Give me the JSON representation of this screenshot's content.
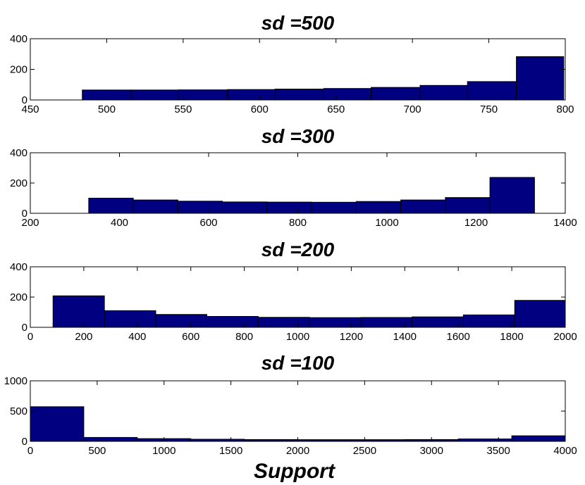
{
  "colors": {
    "bar_fill": "#000080",
    "bar_edge": "#000000",
    "axis": "#000000",
    "background": "#ffffff"
  },
  "chart_data": [
    {
      "type": "bar",
      "title": "sd =500",
      "xlabel": "",
      "ylabel": "",
      "xlim": [
        450,
        800
      ],
      "ylim": [
        0,
        400
      ],
      "xticks": [
        450,
        500,
        550,
        600,
        650,
        700,
        750,
        800
      ],
      "yticks": [
        0,
        200,
        400
      ],
      "bins": [
        {
          "x0": 484,
          "x1": 516,
          "value": 65
        },
        {
          "x0": 516,
          "x1": 547,
          "value": 65
        },
        {
          "x0": 547,
          "x1": 579,
          "value": 66
        },
        {
          "x0": 579,
          "x1": 610,
          "value": 68
        },
        {
          "x0": 610,
          "x1": 642,
          "value": 71
        },
        {
          "x0": 642,
          "x1": 673,
          "value": 75
        },
        {
          "x0": 673,
          "x1": 705,
          "value": 82
        },
        {
          "x0": 705,
          "x1": 736,
          "value": 95
        },
        {
          "x0": 736,
          "x1": 768,
          "value": 120
        },
        {
          "x0": 768,
          "x1": 799,
          "value": 283
        }
      ]
    },
    {
      "type": "bar",
      "title": "sd =300",
      "xlabel": "",
      "ylabel": "",
      "xlim": [
        200,
        1400
      ],
      "ylim": [
        0,
        400
      ],
      "xticks": [
        200,
        400,
        600,
        800,
        1000,
        1200,
        1400
      ],
      "yticks": [
        0,
        200,
        400
      ],
      "bins": [
        {
          "x0": 331,
          "x1": 431,
          "value": 100
        },
        {
          "x0": 431,
          "x1": 531,
          "value": 88
        },
        {
          "x0": 531,
          "x1": 631,
          "value": 80
        },
        {
          "x0": 631,
          "x1": 731,
          "value": 75
        },
        {
          "x0": 731,
          "x1": 831,
          "value": 74
        },
        {
          "x0": 831,
          "x1": 931,
          "value": 73
        },
        {
          "x0": 931,
          "x1": 1031,
          "value": 78
        },
        {
          "x0": 1031,
          "x1": 1131,
          "value": 88
        },
        {
          "x0": 1131,
          "x1": 1231,
          "value": 104
        },
        {
          "x0": 1231,
          "x1": 1331,
          "value": 237
        }
      ]
    },
    {
      "type": "bar",
      "title": "sd =200",
      "xlabel": "",
      "ylabel": "",
      "xlim": [
        0,
        2000
      ],
      "ylim": [
        0,
        400
      ],
      "xticks": [
        0,
        200,
        400,
        600,
        800,
        1000,
        1200,
        1400,
        1600,
        1800,
        2000
      ],
      "yticks": [
        0,
        200,
        400
      ],
      "bins": [
        {
          "x0": 85,
          "x1": 277,
          "value": 208
        },
        {
          "x0": 277,
          "x1": 469,
          "value": 110
        },
        {
          "x0": 469,
          "x1": 660,
          "value": 85
        },
        {
          "x0": 660,
          "x1": 852,
          "value": 72
        },
        {
          "x0": 852,
          "x1": 1044,
          "value": 66
        },
        {
          "x0": 1044,
          "x1": 1236,
          "value": 64
        },
        {
          "x0": 1236,
          "x1": 1427,
          "value": 65
        },
        {
          "x0": 1427,
          "x1": 1619,
          "value": 69
        },
        {
          "x0": 1619,
          "x1": 1811,
          "value": 82
        },
        {
          "x0": 1811,
          "x1": 2000,
          "value": 178
        }
      ]
    },
    {
      "type": "bar",
      "title": "sd =100",
      "xlabel": "Support",
      "ylabel": "",
      "xlim": [
        0,
        4000
      ],
      "ylim": [
        0,
        1000
      ],
      "xticks": [
        0,
        500,
        1000,
        1500,
        2000,
        2500,
        3000,
        3500,
        4000
      ],
      "yticks": [
        0,
        500,
        1000
      ],
      "bins": [
        {
          "x0": 0,
          "x1": 400,
          "value": 572
        },
        {
          "x0": 400,
          "x1": 800,
          "value": 65
        },
        {
          "x0": 800,
          "x1": 1200,
          "value": 45
        },
        {
          "x0": 1200,
          "x1": 1600,
          "value": 35
        },
        {
          "x0": 1600,
          "x1": 2000,
          "value": 30
        },
        {
          "x0": 2000,
          "x1": 2400,
          "value": 28
        },
        {
          "x0": 2400,
          "x1": 2800,
          "value": 28
        },
        {
          "x0": 2800,
          "x1": 3200,
          "value": 30
        },
        {
          "x0": 3200,
          "x1": 3600,
          "value": 40
        },
        {
          "x0": 3600,
          "x1": 4000,
          "value": 92
        }
      ]
    }
  ]
}
